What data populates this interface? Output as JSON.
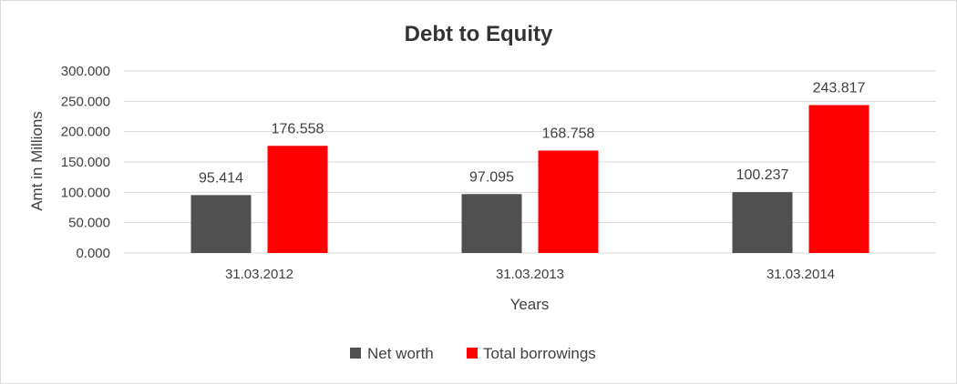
{
  "chart_data": {
    "type": "bar",
    "title": "Debt to Equity",
    "xlabel": "Years",
    "ylabel": "Amt in Millions",
    "categories": [
      "31.03.2012",
      "31.03.2013",
      "31.03.2014"
    ],
    "series": [
      {
        "name": "Net worth",
        "color": "#505050",
        "values": [
          95.414,
          97.095,
          100.237
        ],
        "labels": [
          "95.414",
          "97.095",
          "100.237"
        ]
      },
      {
        "name": "Total borrowings",
        "color": "#ff0000",
        "values": [
          176.558,
          168.758,
          243.817
        ],
        "labels": [
          "176.558",
          "168.758",
          "243.817"
        ]
      }
    ],
    "ylim": [
      0,
      300
    ],
    "yticks": [
      "0.000",
      "50.000",
      "100.000",
      "150.000",
      "200.000",
      "250.000",
      "300.000"
    ],
    "grid": true,
    "legend_position": "bottom",
    "gridline_color": "#d9d9d9"
  }
}
